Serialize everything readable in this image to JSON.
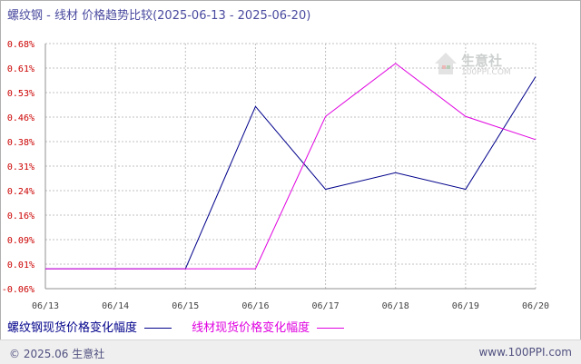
{
  "header": {
    "title": "螺纹钢 - 线材 价格趋势比较(2025-06-13 - 2025-06-20)"
  },
  "watermark": {
    "name": "生意社",
    "url": "100PPI.COM"
  },
  "footer": {
    "copyright": "© 2025.06 生意社",
    "site": "www.100PPI.com"
  },
  "colors": {
    "series_1": "#00008b",
    "series_2": "#e000e0",
    "axis_text": "#cc0000",
    "grid": "#c0c0c0"
  },
  "chart_data": {
    "type": "line",
    "title": "螺纹钢 - 线材 价格趋势比较(2025-06-13 - 2025-06-20)",
    "categories": [
      "06/13",
      "06/14",
      "06/15",
      "06/16",
      "06/17",
      "06/18",
      "06/19",
      "06/20"
    ],
    "y_ticks": [
      "0.68%",
      "0.61%",
      "0.53%",
      "0.46%",
      "0.38%",
      "0.31%",
      "0.24%",
      "0.16%",
      "0.09%",
      "0.01%",
      "-0.06%"
    ],
    "ylim": [
      -0.06,
      0.68
    ],
    "grid": true,
    "legend_position": "bottom-left",
    "series": [
      {
        "name": "螺纹钢现货价格变化幅度",
        "values": [
          0,
          0,
          0,
          0.49,
          0.24,
          0.29,
          0.24,
          0.58
        ]
      },
      {
        "name": "线材现货价格变化幅度",
        "values": [
          0,
          0,
          0,
          0,
          0.46,
          0.62,
          0.46,
          0.39
        ]
      }
    ]
  }
}
